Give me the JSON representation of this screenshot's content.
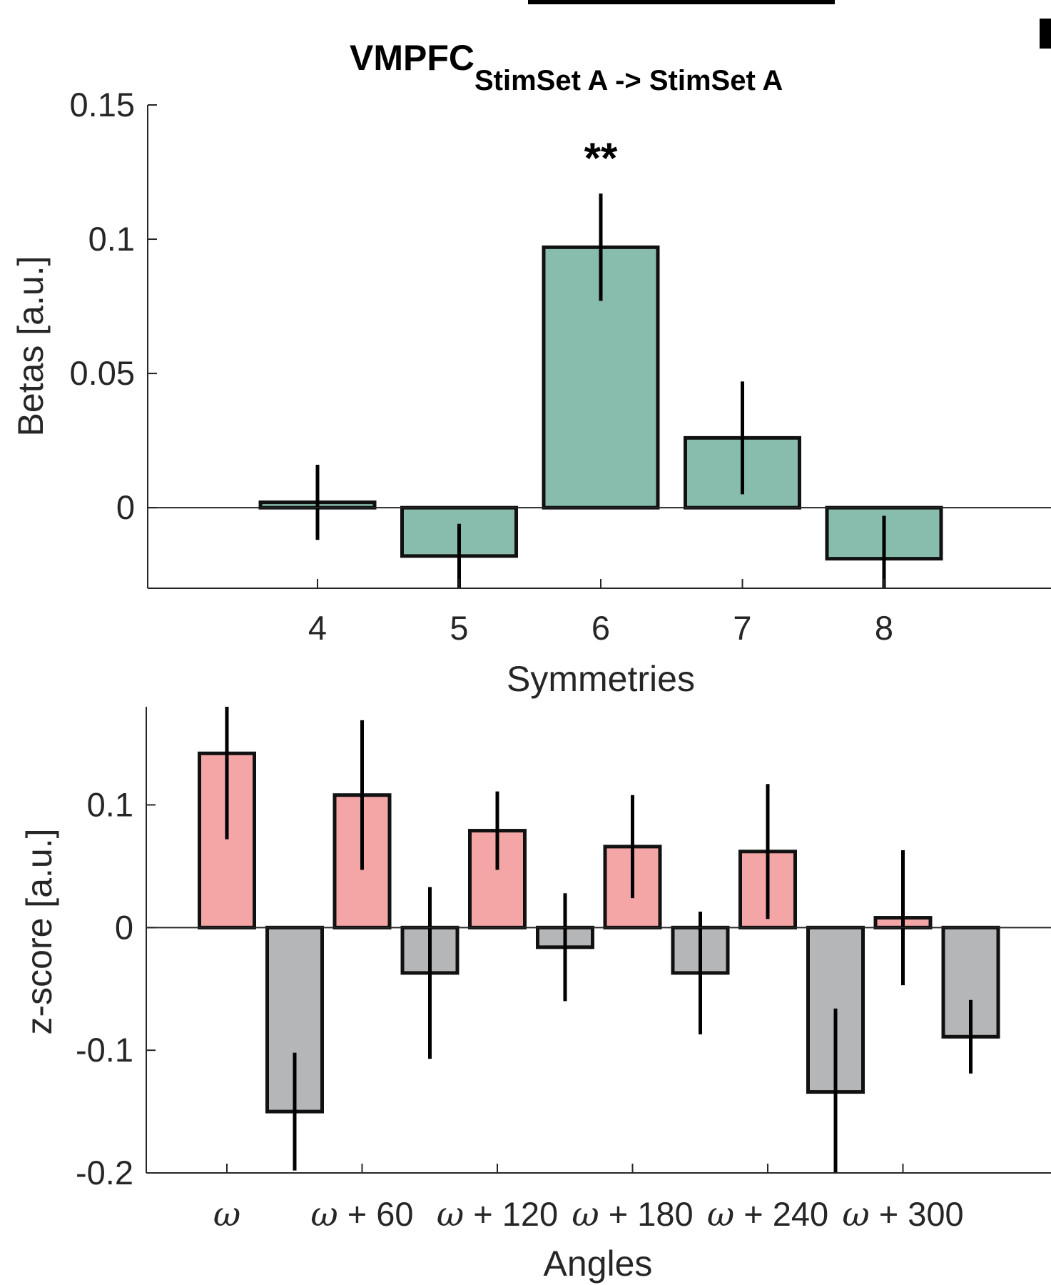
{
  "chart_data": [
    {
      "type": "bar",
      "title": "VMPFC",
      "title_subscript": "StimSet A -> StimSet A",
      "xlabel": "Symmetries",
      "ylabel": "Betas [a.u.]",
      "categories": [
        "4",
        "5",
        "6",
        "7",
        "8"
      ],
      "values": [
        0.002,
        -0.018,
        0.097,
        0.026,
        -0.019
      ],
      "error": [
        0.014,
        0.012,
        0.02,
        0.021,
        0.016
      ],
      "ylim": [
        -0.03,
        0.15
      ],
      "yticks": [
        "0",
        "0.05",
        "0.1",
        "0.15"
      ],
      "annotations": [
        {
          "category": "6",
          "text": "**"
        }
      ],
      "colors": {
        "bar": "#88bdad",
        "edge": "#111111"
      }
    },
    {
      "type": "bar",
      "xlabel": "Angles",
      "ylabel": "z-score [a.u.]",
      "tick_labels": [
        {
          "omega": "ω",
          "suffix": ""
        },
        {
          "omega": "ω",
          "suffix": " + 60"
        },
        {
          "omega": "ω",
          "suffix": " + 120"
        },
        {
          "omega": "ω",
          "suffix": " + 180"
        },
        {
          "omega": "ω",
          "suffix": " + 240"
        },
        {
          "omega": "ω",
          "suffix": " + 300"
        }
      ],
      "pairs": [
        {
          "aligned": {
            "value": 0.142,
            "error": 0.07
          },
          "misaligned": {
            "value": -0.15,
            "error": 0.048
          }
        },
        {
          "aligned": {
            "value": 0.108,
            "error": 0.061
          },
          "misaligned": {
            "value": -0.037,
            "error": 0.07
          }
        },
        {
          "aligned": {
            "value": 0.079,
            "error": 0.032
          },
          "misaligned": {
            "value": -0.016,
            "error": 0.044
          }
        },
        {
          "aligned": {
            "value": 0.066,
            "error": 0.042
          },
          "misaligned": {
            "value": -0.037,
            "error": 0.05
          }
        },
        {
          "aligned": {
            "value": 0.062,
            "error": 0.055
          },
          "misaligned": {
            "value": -0.134,
            "error": 0.068
          }
        },
        {
          "aligned": {
            "value": 0.008,
            "error": 0.055
          },
          "misaligned": {
            "value": -0.089,
            "error": 0.03
          }
        }
      ],
      "ylim": [
        -0.2,
        0.18
      ],
      "yticks": [
        "-0.2",
        "-0.1",
        "0",
        "0.1"
      ],
      "colors": {
        "aligned": "#f4a6a6",
        "misaligned": "#b5b6b7",
        "edge": "#111111"
      }
    }
  ]
}
